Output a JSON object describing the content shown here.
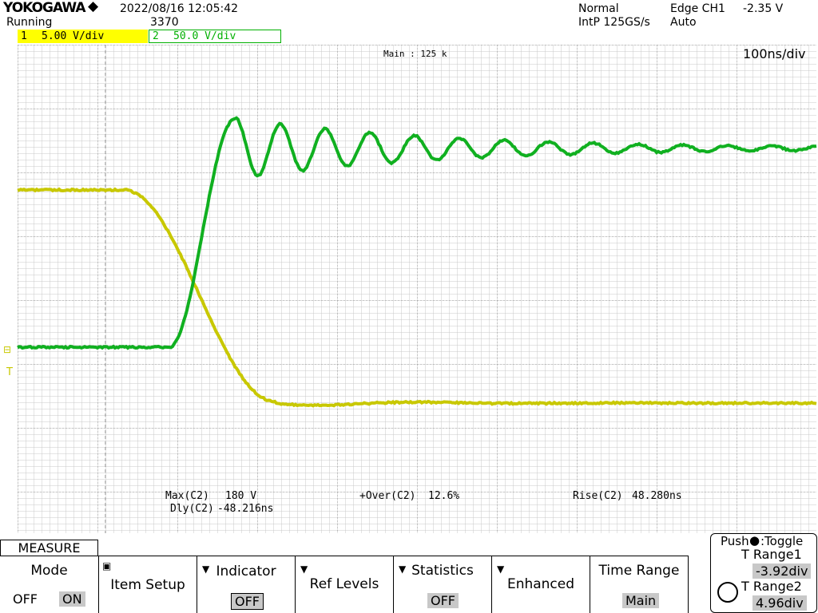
{
  "header": {
    "brand": "YOKOGAWA",
    "status": "Running",
    "datetime": "2022/08/16 12:05:42",
    "count": "3370",
    "acq_mode": "Normal",
    "sample_rate": "IntP 125GS/s",
    "trigger": "Edge CH1",
    "trigger_level": "-2.35 V",
    "trigger_mode": "Auto"
  },
  "channels": [
    {
      "number": "1",
      "scale": "5.00 V/div"
    },
    {
      "number": "2",
      "scale": "50.0 V/div"
    }
  ],
  "screen": {
    "zoom": "Main : 125 k",
    "timebase": "100ns/div"
  },
  "measurements": [
    {
      "label": "Max(C2)",
      "value": "180 V"
    },
    {
      "label": "Dly(C2)",
      "value": "-48.216ns"
    },
    {
      "label": "+Over(C2)",
      "value": "12.6%"
    },
    {
      "label": "Rise(C2)",
      "value": "48.280ns"
    }
  ],
  "menu": {
    "tab": "MEASURE",
    "items": [
      {
        "label": "Mode",
        "options": [
          "OFF",
          "ON"
        ]
      },
      {
        "label": "Item Setup"
      },
      {
        "label": "Indicator",
        "value": "OFF"
      },
      {
        "label": "Ref Levels"
      },
      {
        "label": "Statistics",
        "value": "OFF"
      },
      {
        "label": "Enhanced"
      },
      {
        "label": "Time Range",
        "value": "Main"
      }
    ],
    "panel": {
      "title": "Push",
      "toggle": ":Toggle",
      "range1_label": "T Range1",
      "range1_value": "-3.92div",
      "range2_label": "T Range2",
      "range2_value": "4.96div"
    }
  }
}
